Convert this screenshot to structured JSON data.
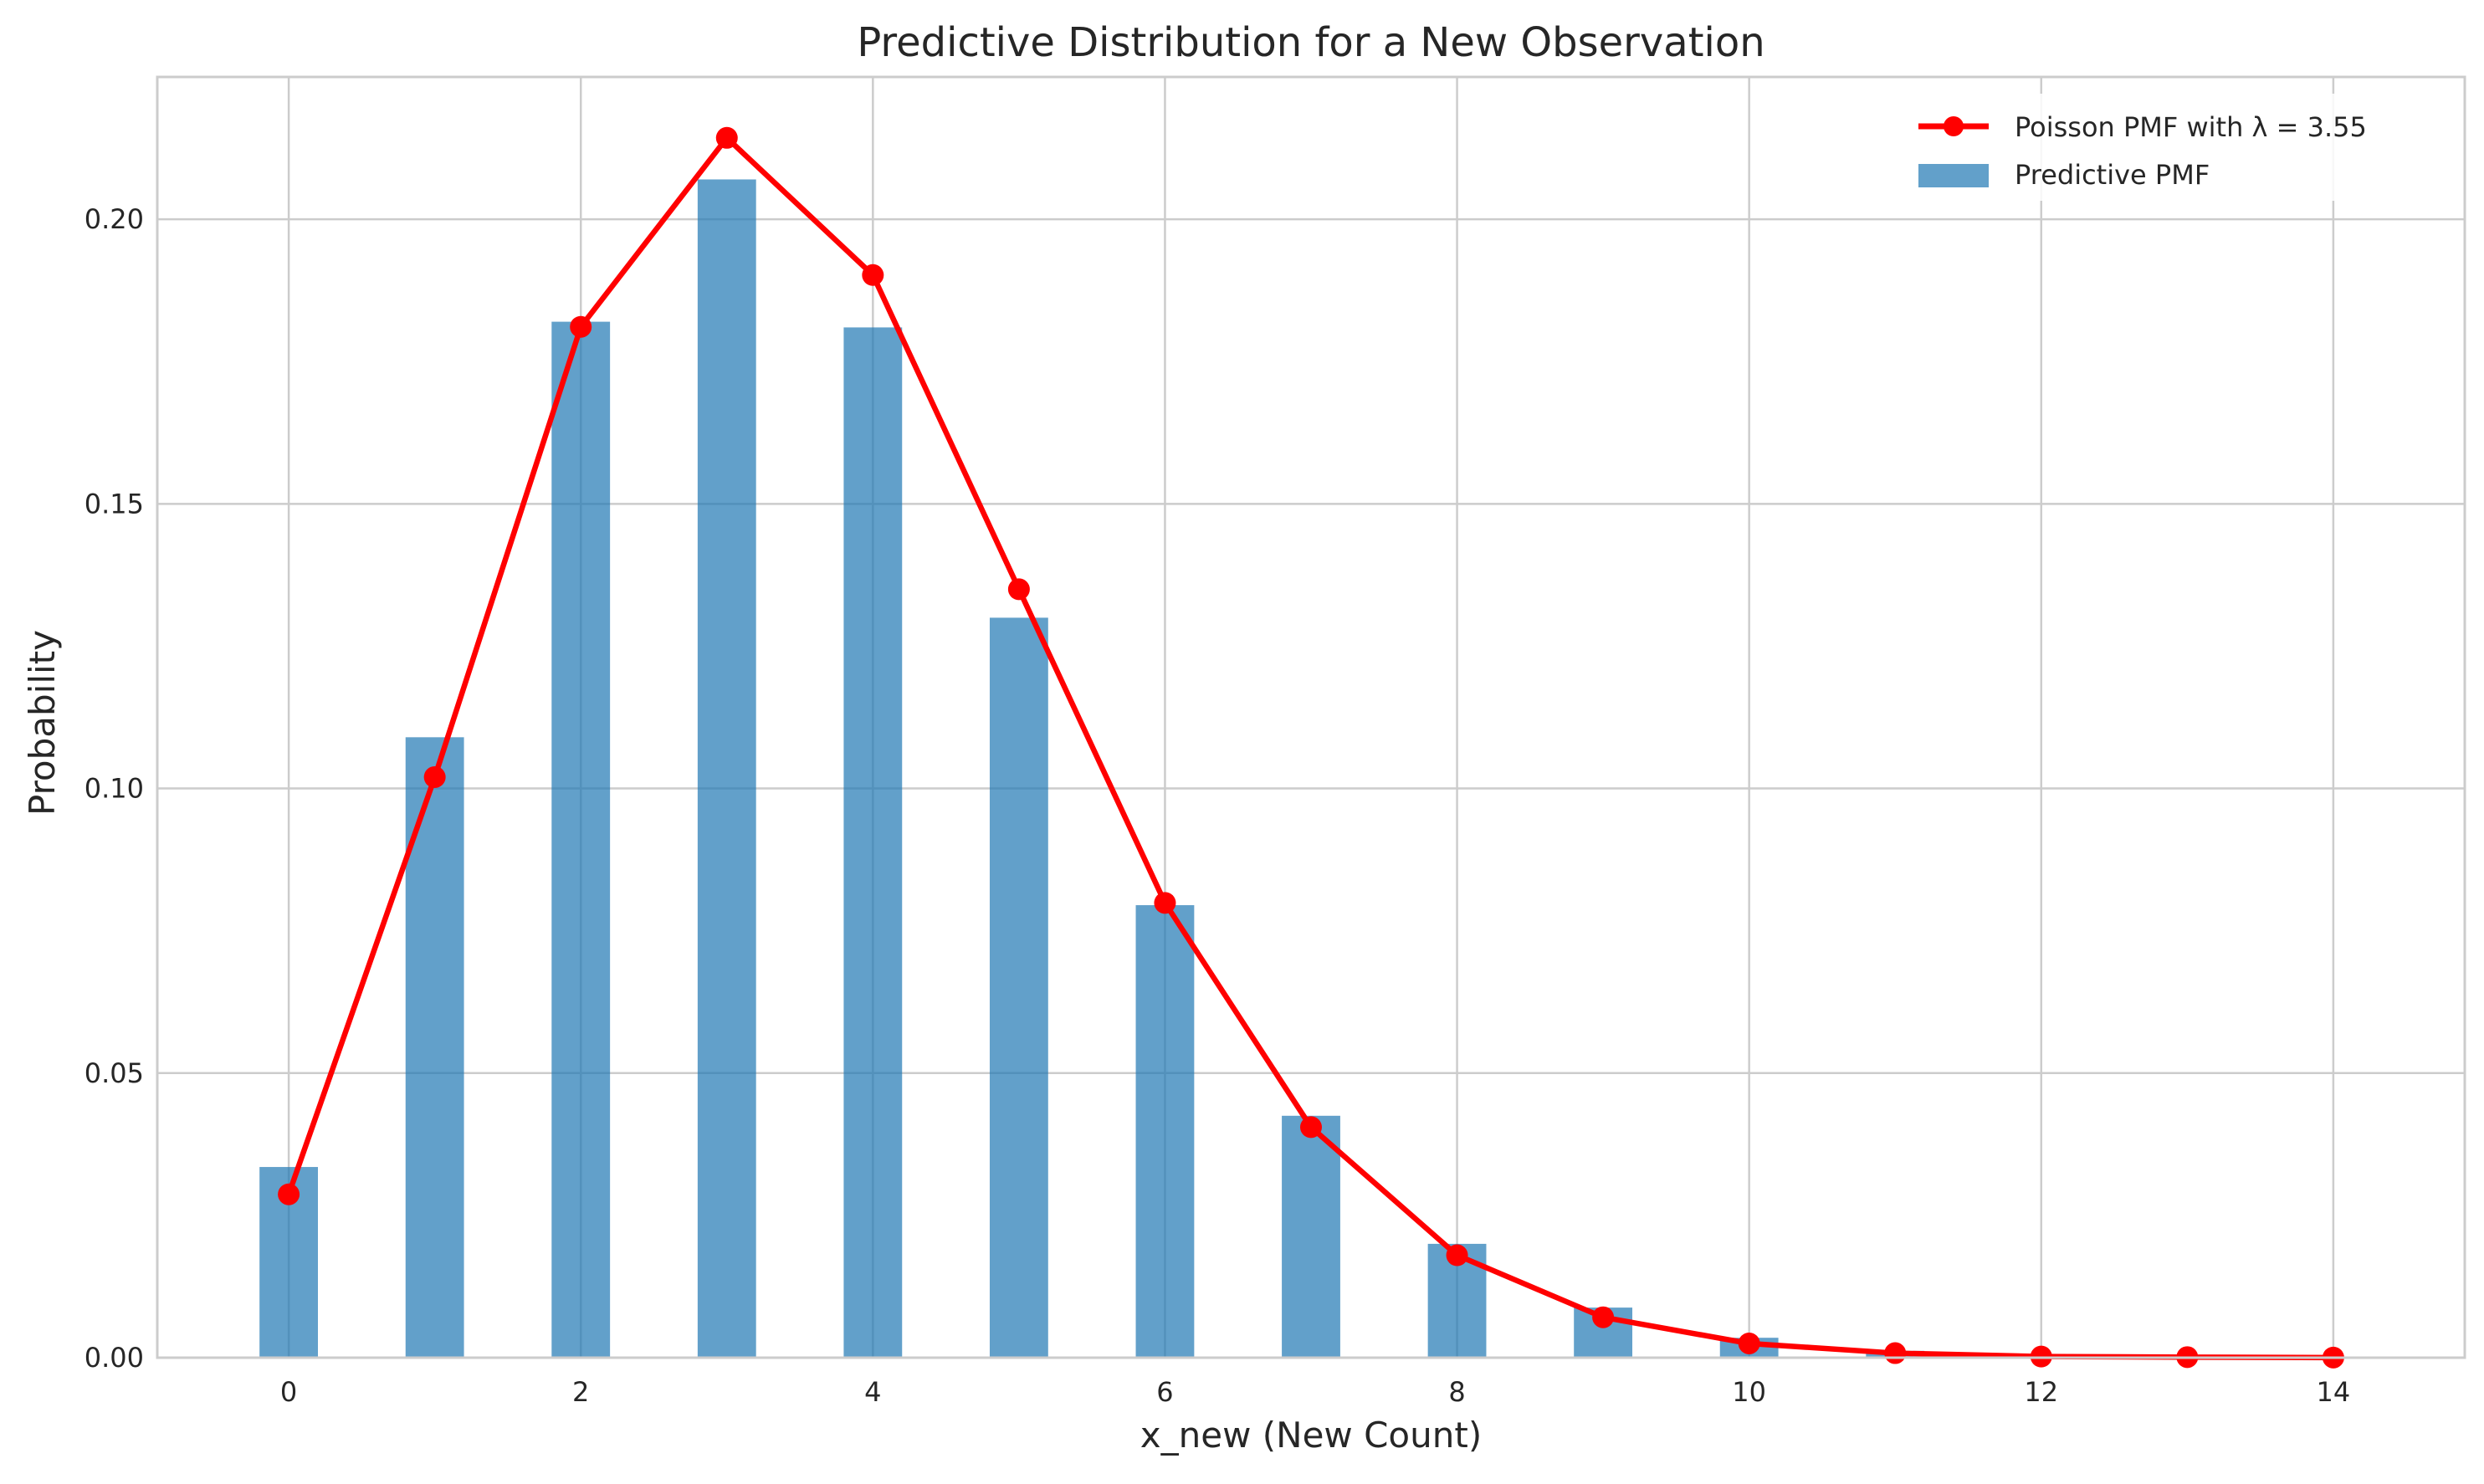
{
  "chart_data": {
    "type": "bar",
    "title": "Predictive Distribution for a New Observation",
    "xlabel": "x_new (New Count)",
    "ylabel": "Probability",
    "xlim": [
      -0.9,
      14.9
    ],
    "ylim": [
      0,
      0.225
    ],
    "grid": true,
    "legend_position": "top-right",
    "x_ticks": [
      0,
      2,
      4,
      6,
      8,
      10,
      12,
      14
    ],
    "x_tick_labels": [
      "0",
      "2",
      "4",
      "6",
      "8",
      "10",
      "12",
      "14"
    ],
    "y_ticks": [
      0.0,
      0.05,
      0.1,
      0.15,
      0.2
    ],
    "y_tick_labels": [
      "0.00",
      "0.05",
      "0.10",
      "0.15",
      "0.20"
    ],
    "series": [
      {
        "name": "Predictive PMF",
        "kind": "bar",
        "color": "#1f77b4",
        "opacity": 0.7,
        "x": [
          0,
          1,
          2,
          3,
          4,
          5,
          6,
          7,
          8,
          9,
          10,
          11,
          12,
          13,
          14
        ],
        "values": [
          0.0335,
          0.109,
          0.182,
          0.207,
          0.181,
          0.13,
          0.0795,
          0.0425,
          0.02,
          0.0088,
          0.0035,
          0.0012,
          0.0004,
          0.0001,
          3e-05
        ]
      },
      {
        "name": "Poisson PMF with λ = 3.55",
        "kind": "line",
        "color": "#ff0000",
        "x": [
          0,
          1,
          2,
          3,
          4,
          5,
          6,
          7,
          8,
          9,
          10,
          11,
          12,
          13,
          14
        ],
        "values": [
          0.0287,
          0.102,
          0.1811,
          0.2143,
          0.1902,
          0.135,
          0.0799,
          0.0405,
          0.018,
          0.0071,
          0.0025,
          0.0008,
          0.0002,
          0.0001,
          2e-05
        ]
      }
    ]
  },
  "colors": {
    "grid": "#cccccc",
    "axes_edge": "#cccccc",
    "text": "#262626"
  }
}
